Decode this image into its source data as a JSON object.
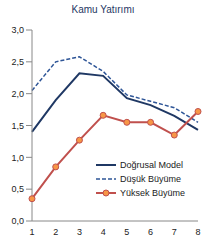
{
  "chart_data": {
    "type": "line",
    "title": "Kamu Yatırımı",
    "categories": [
      "1",
      "2",
      "3",
      "4",
      "5",
      "6",
      "7",
      "8"
    ],
    "series": [
      {
        "name": "Doğrusal Model",
        "color": "#1f3864",
        "line_style": "solid",
        "marker": "none",
        "values": [
          1.4,
          1.9,
          2.32,
          2.28,
          1.93,
          1.82,
          1.65,
          1.43
        ]
      },
      {
        "name": "Düşük Büyüme",
        "color": "#2e5597",
        "line_style": "dashed",
        "marker": "none",
        "values": [
          2.05,
          2.5,
          2.58,
          2.35,
          1.98,
          1.88,
          1.78,
          1.55
        ]
      },
      {
        "name": "Yüksek Büyüme",
        "color": "#c0504d",
        "line_style": "solid",
        "marker": "circle",
        "values": [
          0.35,
          0.85,
          1.27,
          1.66,
          1.55,
          1.55,
          1.35,
          1.72
        ]
      }
    ],
    "ylim": [
      0,
      3
    ],
    "yticks": [
      {
        "value": 0,
        "label": "0,0"
      },
      {
        "value": 0.5,
        "label": "0,5"
      },
      {
        "value": 1,
        "label": "1,0"
      },
      {
        "value": 1.5,
        "label": "1,5"
      },
      {
        "value": 2,
        "label": "2,0"
      },
      {
        "value": 2.5,
        "label": "2,5"
      },
      {
        "value": 3,
        "label": "3,0"
      }
    ],
    "grid": false,
    "legend": "lower right"
  }
}
